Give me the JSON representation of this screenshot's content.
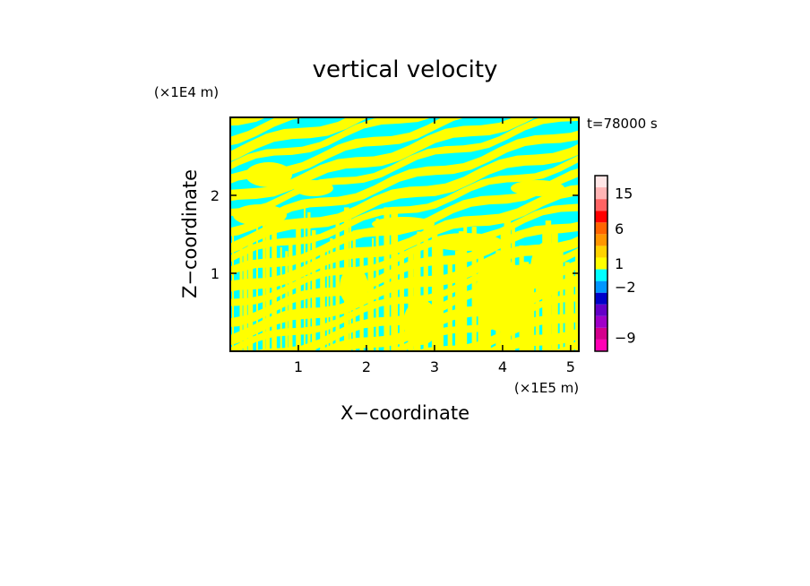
{
  "chart_data": {
    "type": "heatmap",
    "title": "vertical velocity",
    "xlabel": "X−coordinate",
    "ylabel": "Z−coordinate",
    "x_unit": "(×1E5 m)",
    "y_unit": "(×1E4 m)",
    "time_label": "t=78000 s",
    "xlim": [
      0,
      5.12
    ],
    "ylim": [
      0,
      3.0
    ],
    "x_ticks": [
      1,
      2,
      3,
      4,
      5
    ],
    "x_tick_labels": [
      "1",
      "2",
      "3",
      "4",
      "5"
    ],
    "y_ticks": [
      1,
      2
    ],
    "y_tick_labels": [
      "1",
      "2"
    ],
    "field_colors": [
      "#ffff00",
      "#00ffff"
    ],
    "field_description_values": [
      "yellow = weak upward (0..1)",
      "cyan = weak downward (-1..0)"
    ],
    "colorbar": {
      "tick_labels": [
        "15",
        "6",
        "1",
        "−2",
        "−9"
      ],
      "tick_values": [
        15,
        6,
        1,
        -2,
        -9
      ],
      "levels": [
        {
          "color": "#ff00b4"
        },
        {
          "color": "#d4008c"
        },
        {
          "color": "#a000c8"
        },
        {
          "color": "#6400c8"
        },
        {
          "color": "#0000c8"
        },
        {
          "color": "#0096ff"
        },
        {
          "color": "#00ffff"
        },
        {
          "color": "#ffff00"
        },
        {
          "color": "#ffd200"
        },
        {
          "color": "#ff9600"
        },
        {
          "color": "#ff6400"
        },
        {
          "color": "#ff0000"
        },
        {
          "color": "#ff6464"
        },
        {
          "color": "#ffb4b4"
        },
        {
          "color": "#ffe6e6"
        }
      ]
    }
  }
}
